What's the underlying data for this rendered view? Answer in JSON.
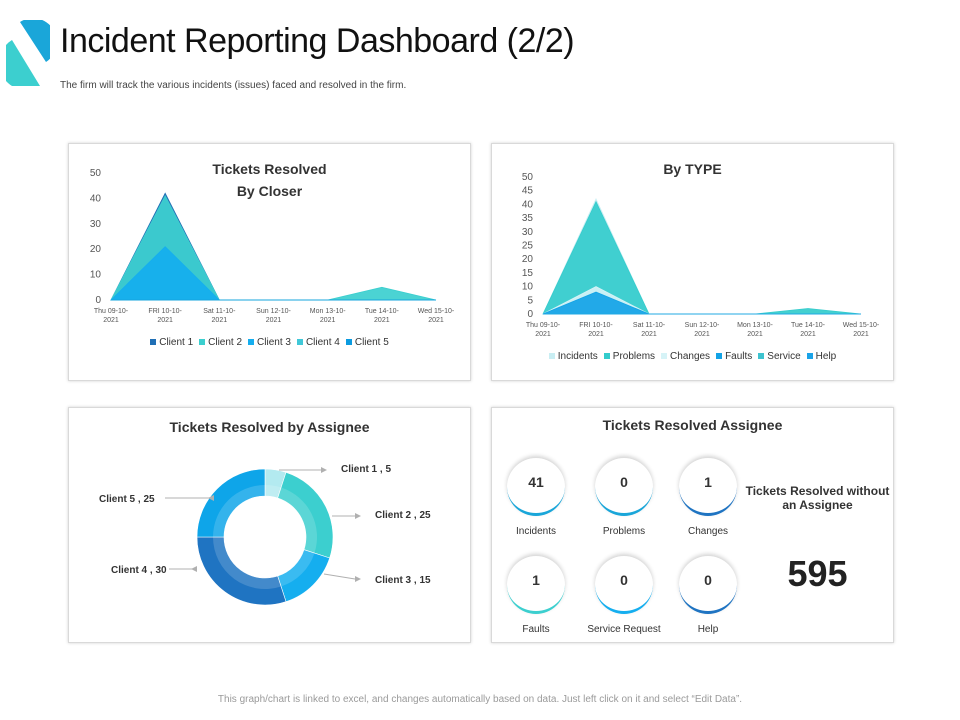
{
  "header": {
    "title": "Incident Reporting Dashboard (2/2)",
    "subtitle": "The firm will track the various incidents (issues) faced and resolved in the firm."
  },
  "footer": "This graph/chart is linked to excel, and changes automatically based on data. Just left click on it and select “Edit Data”.",
  "colors": {
    "accent": "#1aa6d9",
    "client1": "#1f6fb5",
    "client2": "#3ccfcf",
    "client3": "#15aeef",
    "client4": "#2f7bc4",
    "client5": "#0ea5e9"
  },
  "kpi": {
    "title": "Tickets Resolved Assignee",
    "items": [
      {
        "label": "Incidents",
        "value": "41"
      },
      {
        "label": "Problems",
        "value": "0"
      },
      {
        "label": "Changes",
        "value": "1"
      },
      {
        "label": "Faults",
        "value": "1"
      },
      {
        "label": "Service Request",
        "value": "0"
      },
      {
        "label": "Help",
        "value": "0"
      }
    ],
    "no_assignee_label": "Tickets Resolved without an Assignee",
    "no_assignee_value": "595"
  },
  "chart_data": [
    {
      "type": "area",
      "title_line1": "Tickets Resolved",
      "title_line2": "By Closer",
      "categories": [
        "Thu 09-10-2021",
        "FRI 10-10-2021",
        "Sat 11-10-2021",
        "Sun 12-10-2021",
        "Mon 13-10-2021",
        "Tue 14-10-2021",
        "Wed 15-10-2021"
      ],
      "yticks": [
        0,
        10,
        20,
        30,
        40,
        50
      ],
      "ylim": [
        0,
        50
      ],
      "series": [
        {
          "name": "Client 1",
          "color": "#1f6fb5",
          "values": [
            0,
            42,
            0,
            0,
            0,
            0,
            0
          ]
        },
        {
          "name": "Client 2",
          "color": "#3ccfcf",
          "values": [
            0,
            41,
            0,
            0,
            0,
            5,
            0
          ]
        },
        {
          "name": "Client 3",
          "color": "#15aeef",
          "values": [
            0,
            21,
            0,
            0,
            0,
            0,
            0
          ]
        },
        {
          "name": "Client 4",
          "color": "#40c8d8",
          "values": [
            0,
            0,
            0,
            0,
            0,
            0,
            0
          ]
        },
        {
          "name": "Client 5",
          "color": "#0b9be0",
          "values": [
            0,
            0,
            0,
            0,
            0,
            0,
            0
          ]
        }
      ]
    },
    {
      "type": "area",
      "title": "By TYPE",
      "categories": [
        "Thu 09-10-2021",
        "FRI 10-10-2021",
        "Sat 11-10-2021",
        "Sun 12-10-2021",
        "Mon 13-10-2021",
        "Tue 14-10-2021",
        "Wed 15-10-2021"
      ],
      "yticks": [
        0,
        5,
        10,
        15,
        20,
        25,
        30,
        35,
        40,
        45,
        50
      ],
      "ylim": [
        0,
        50
      ],
      "series": [
        {
          "name": "Incidents",
          "color": "#c9eef3",
          "values": [
            0,
            42,
            0,
            0,
            0,
            0,
            0
          ]
        },
        {
          "name": "Problems",
          "color": "#34cccc",
          "values": [
            0,
            41,
            0,
            0,
            0,
            2,
            0
          ]
        },
        {
          "name": "Changes",
          "color": "#d6f3f7",
          "values": [
            0,
            10,
            0,
            0,
            0,
            0,
            0
          ]
        },
        {
          "name": "Faults",
          "color": "#13a3e6",
          "values": [
            0,
            8,
            0,
            0,
            0,
            0,
            0
          ]
        },
        {
          "name": "Service",
          "color": "#3dc3cf",
          "values": [
            0,
            0,
            0,
            0,
            0,
            0,
            0
          ]
        },
        {
          "name": "Help",
          "color": "#1aa3e8",
          "values": [
            0,
            0,
            0,
            0,
            0,
            0,
            0
          ]
        }
      ]
    },
    {
      "type": "pie",
      "title": "Tickets Resolved by Assignee",
      "slices": [
        {
          "label": "Client 1 , 5",
          "name": "Client 1",
          "value": 5,
          "color": "#b3eaf0"
        },
        {
          "label": "Client 2 , 25",
          "name": "Client 2",
          "value": 25,
          "color": "#3ccfcf"
        },
        {
          "label": "Client 3 , 15",
          "name": "Client 3",
          "value": 15,
          "color": "#15aeef"
        },
        {
          "label": "Client 4 , 30",
          "name": "Client 4",
          "value": 30,
          "color": "#1f74c2"
        },
        {
          "label": "Client 5 , 25",
          "name": "Client 5",
          "value": 25,
          "color": "#0ea5e9"
        }
      ]
    }
  ]
}
